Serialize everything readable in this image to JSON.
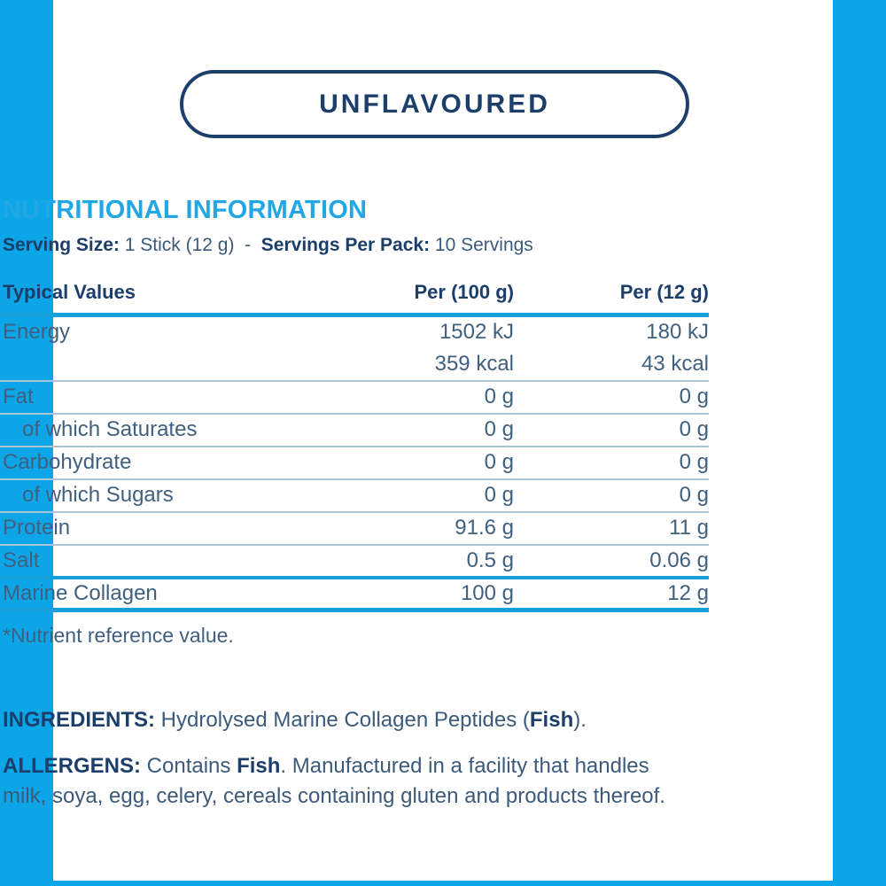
{
  "colors": {
    "accent_cyan": "#0ca6e8",
    "title_cyan": "#22a7e5",
    "rule_cyan": "#18a0dd",
    "navy": "#1c3e6b",
    "body_text": "#40607f",
    "thin_rule": "#a9c4d6"
  },
  "badge": {
    "label": "UNFLAVOURED"
  },
  "nutrition": {
    "title": "NUTRITIONAL INFORMATION",
    "serving": {
      "size_label": "Serving Size:",
      "size_value": " 1 Stick (12 g)",
      "dash": "  -  ",
      "pack_label": "Servings Per Pack:",
      "pack_value": " 10 Servings"
    },
    "table": {
      "headers": {
        "label": "Typical Values",
        "per100": "Per (100 g)",
        "per12": "Per (12 g)"
      },
      "rows": [
        {
          "label": "Energy",
          "per100": "1502 kJ",
          "per12": "180 kJ"
        },
        {
          "label": "",
          "per100": "359 kcal",
          "per12": "43 kcal"
        },
        {
          "label": "Fat",
          "per100": "0 g",
          "per12": "0 g"
        },
        {
          "label": "of which Saturates",
          "per100": "0 g",
          "per12": "0 g"
        },
        {
          "label": "Carbohydrate",
          "per100": "0 g",
          "per12": "0 g"
        },
        {
          "label": "of which Sugars",
          "per100": "0 g",
          "per12": "0 g"
        },
        {
          "label": "Protein",
          "per100": "91.6 g",
          "per12": "11 g"
        },
        {
          "label": "Salt",
          "per100": "0.5 g",
          "per12": "0.06 g"
        },
        {
          "label": "Marine Collagen",
          "per100": "100 g",
          "per12": "12 g"
        }
      ]
    },
    "footnote": "*Nutrient reference value."
  },
  "ingredients": {
    "label": "INGREDIENTS:",
    "text_before": " Hydrolysed Marine Collagen Peptides (",
    "emphasis": "Fish",
    "text_after": ")."
  },
  "allergens": {
    "label": "ALLERGENS:",
    "text_before": " Contains ",
    "emphasis": "Fish",
    "text_after": ". Manufactured in a facility that handles milk, soya, egg, celery, cereals containing gluten and products thereof."
  }
}
